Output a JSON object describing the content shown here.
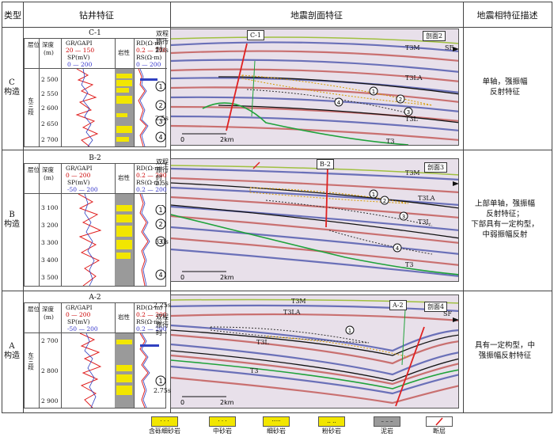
{
  "headers": {
    "type": "类型",
    "well": "钻井特征",
    "seismic": "地震剖面特征",
    "desc": "地震相特征描述"
  },
  "rows": [
    {
      "type_top": "C",
      "type_bottom": "构造",
      "well": {
        "name": "C-1",
        "h_layer": "层位",
        "h_depth": "深度",
        "h_unit": "(m)",
        "gr": "GR/GAPI",
        "gr_range": "20 — 150",
        "sp": "SP(mV)",
        "sp_range": "0 — 200",
        "lith": "岩性",
        "rd": "RD(Ω·m)",
        "rd_range": "0.2 — 200",
        "rs": "RS(Ω·m)",
        "rs_range": "0 — 200",
        "formation": "东三段",
        "depths": [
          "2 500",
          "2 550",
          "2 600",
          "2 650",
          "2 700"
        ],
        "markers": [
          "1",
          "2",
          "3",
          "4"
        ]
      },
      "seismic": {
        "section": "剖面2",
        "well_tag": "C-1",
        "axis": "双程旅行时",
        "t_top": "2.0s",
        "t_bottom": "2.5s",
        "scale0": "0",
        "scale1": "2km",
        "horizons": [
          "T3M",
          "T3LA",
          "T3L",
          "T3"
        ],
        "bodies": [
          "1",
          "2",
          "3",
          "4"
        ],
        "sf": "SF"
      },
      "desc": [
        "单轴，强振幅",
        "反射特征"
      ]
    },
    {
      "type_top": "B",
      "type_bottom": "构造",
      "well": {
        "name": "B-2",
        "h_layer": "层位",
        "h_depth": "深度",
        "h_unit": "(m)",
        "gr": "GR/GAPI",
        "gr_range": "0 — 200",
        "sp": "SP(mV)",
        "sp_range": "-50 — 200",
        "lith": "岩性",
        "rd": "RD(Ω·m)",
        "rd_range": "0.2 — 200",
        "rs": "RS(Ω·m)",
        "rs_range": "0.2 — 200",
        "formation": "",
        "depths": [
          "3 100",
          "3 200",
          "3 300",
          "3 400",
          "3 500"
        ],
        "markers": [
          "1",
          "2",
          "3",
          "4"
        ]
      },
      "seismic": {
        "section": "剖面3",
        "well_tag": "B-2",
        "axis": "双程旅行时",
        "t_top": "2.5s",
        "t_bottom": "3.0s",
        "scale0": "0",
        "scale1": "2km",
        "horizons": [
          "T3M",
          "T3LA",
          "T3L",
          "T3"
        ],
        "bodies": [
          "1",
          "2",
          "3",
          "4"
        ],
        "sf": ""
      },
      "desc": [
        "上部单轴，强振幅",
        "反射特征；",
        "下部具有一定构型，",
        "中弱振幅反射"
      ]
    },
    {
      "type_top": "A",
      "type_bottom": "构造",
      "well": {
        "name": "A-2",
        "h_layer": "层位",
        "h_depth": "深度",
        "h_unit": "(m)",
        "gr": "GR/GAPI",
        "gr_range": "0 — 200",
        "sp": "SP(mV)",
        "sp_range": "-50 — 200",
        "lith": "岩性",
        "rd": "RD(Ω·m)",
        "rd_range": "0.2 — 200",
        "rs": "RS(Ω·m)",
        "rs_range": "0.2 — 200",
        "formation": "东三段",
        "depths": [
          "2 700",
          "2 800",
          "2 900"
        ],
        "markers": [
          "1"
        ]
      },
      "seismic": {
        "section": "剖面4",
        "well_tag": "A-2",
        "axis": "双程旅行时",
        "t_top": "2.25s",
        "t_bottom": "2.75s",
        "scale0": "0",
        "scale1": "2km",
        "horizons": [
          "T3M",
          "T3LA",
          "T3L",
          "T3"
        ],
        "bodies": [
          "1"
        ],
        "sf": "SF"
      },
      "desc": [
        "具有一定构型，中",
        "强振幅反射特征"
      ]
    }
  ],
  "legend": [
    {
      "label": "含砾细砂岩",
      "color": "#f2e600",
      "pattern": "·  ·  ·"
    },
    {
      "label": "中砂岩",
      "color": "#f2e600",
      "pattern": "· · ·"
    },
    {
      "label": "细砂岩",
      "color": "#f2e600",
      "pattern": "·····"
    },
    {
      "label": "粉砂岩",
      "color": "#f2e600",
      "pattern": "‥  ‥"
    },
    {
      "label": "泥岩",
      "color": "#9a9a9a",
      "pattern": "– – –"
    },
    {
      "label": "断层",
      "color": "#ffffff",
      "pattern": ""
    }
  ],
  "colors": {
    "fault": "#e02020",
    "horizon_green": "#1fa23a",
    "horizon_black": "#111111",
    "sand": "#f2e600",
    "mud": "#9a9a9a"
  }
}
